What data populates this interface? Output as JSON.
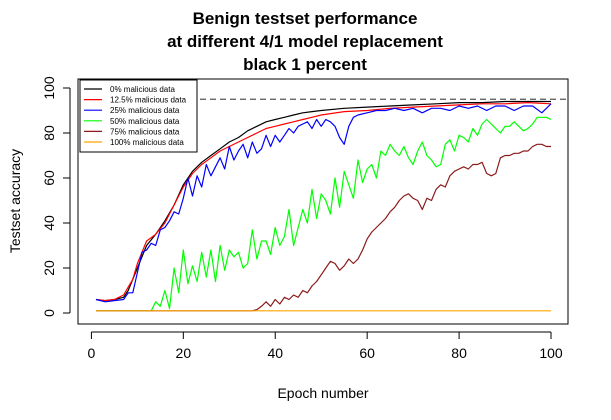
{
  "chart_data": {
    "type": "line",
    "title": [
      "Benign testset performance",
      "at different 4/1 model replacement",
      "black 1 percent"
    ],
    "xlabel": "Epoch number",
    "ylabel": "Testset accuracy",
    "xlim": [
      1,
      100
    ],
    "ylim": [
      0,
      100
    ],
    "xticks": [
      0,
      20,
      40,
      60,
      80,
      100
    ],
    "yticks": [
      0,
      20,
      40,
      60,
      80,
      100
    ],
    "reference_line": {
      "y": 95,
      "style": "dashed",
      "color": "#555555"
    },
    "legend_position": "top-left",
    "series": [
      {
        "name": "0% malicious data",
        "color": "#000000",
        "points": [
          [
            1,
            6
          ],
          [
            3,
            5.5
          ],
          [
            5,
            6
          ],
          [
            7,
            7
          ],
          [
            8,
            10
          ],
          [
            10,
            20
          ],
          [
            12,
            30
          ],
          [
            14,
            35
          ],
          [
            16,
            41
          ],
          [
            18,
            48
          ],
          [
            20,
            57
          ],
          [
            22,
            63
          ],
          [
            24,
            67
          ],
          [
            26,
            70
          ],
          [
            28,
            73
          ],
          [
            30,
            76
          ],
          [
            32,
            78
          ],
          [
            34,
            81
          ],
          [
            36,
            83
          ],
          [
            38,
            85
          ],
          [
            40,
            86
          ],
          [
            42,
            87
          ],
          [
            44,
            88
          ],
          [
            46,
            89
          ],
          [
            48,
            89.5
          ],
          [
            50,
            90
          ],
          [
            55,
            91
          ],
          [
            60,
            91.5
          ],
          [
            65,
            92
          ],
          [
            70,
            92.5
          ],
          [
            75,
            93
          ],
          [
            80,
            93.5
          ],
          [
            85,
            93.5
          ],
          [
            90,
            94
          ],
          [
            95,
            94
          ],
          [
            100,
            94
          ]
        ]
      },
      {
        "name": "12.5% malicious data",
        "color": "#ff0000",
        "points": [
          [
            1,
            6
          ],
          [
            3,
            5.5
          ],
          [
            5,
            6
          ],
          [
            7,
            8
          ],
          [
            9,
            15
          ],
          [
            10,
            22
          ],
          [
            12,
            32
          ],
          [
            14,
            35
          ],
          [
            16,
            40
          ],
          [
            18,
            48
          ],
          [
            20,
            56
          ],
          [
            22,
            62
          ],
          [
            24,
            66
          ],
          [
            26,
            69
          ],
          [
            28,
            72
          ],
          [
            30,
            74
          ],
          [
            32,
            76
          ],
          [
            34,
            78
          ],
          [
            36,
            80
          ],
          [
            38,
            82
          ],
          [
            40,
            83
          ],
          [
            42,
            84
          ],
          [
            44,
            85
          ],
          [
            46,
            86
          ],
          [
            48,
            87
          ],
          [
            50,
            88
          ],
          [
            55,
            89.5
          ],
          [
            60,
            90
          ],
          [
            65,
            91
          ],
          [
            70,
            91.5
          ],
          [
            75,
            92
          ],
          [
            80,
            92.5
          ],
          [
            85,
            93
          ],
          [
            90,
            93
          ],
          [
            95,
            93.5
          ],
          [
            100,
            93
          ]
        ]
      },
      {
        "name": "25% malicious data",
        "color": "#0000ff",
        "points": [
          [
            1,
            6
          ],
          [
            3,
            5
          ],
          [
            5,
            5.5
          ],
          [
            7,
            6
          ],
          [
            8,
            9
          ],
          [
            9,
            9
          ],
          [
            10,
            18
          ],
          [
            11,
            27
          ],
          [
            12,
            28
          ],
          [
            13,
            31
          ],
          [
            14,
            30
          ],
          [
            15,
            37
          ],
          [
            16,
            38
          ],
          [
            17,
            41
          ],
          [
            18,
            45
          ],
          [
            19,
            44
          ],
          [
            20,
            51
          ],
          [
            21,
            60
          ],
          [
            22,
            52
          ],
          [
            23,
            61
          ],
          [
            24,
            56
          ],
          [
            25,
            66
          ],
          [
            26,
            61
          ],
          [
            27,
            65
          ],
          [
            28,
            69
          ],
          [
            29,
            64
          ],
          [
            30,
            74
          ],
          [
            31,
            68
          ],
          [
            32,
            72
          ],
          [
            33,
            75
          ],
          [
            34,
            69
          ],
          [
            35,
            76
          ],
          [
            36,
            71
          ],
          [
            37,
            73
          ],
          [
            38,
            79
          ],
          [
            39,
            74
          ],
          [
            40,
            79
          ],
          [
            41,
            76
          ],
          [
            42,
            79
          ],
          [
            43,
            82
          ],
          [
            44,
            80
          ],
          [
            45,
            83
          ],
          [
            46,
            84
          ],
          [
            47,
            85
          ],
          [
            48,
            82
          ],
          [
            49,
            86
          ],
          [
            50,
            83
          ],
          [
            51,
            86
          ],
          [
            52,
            85
          ],
          [
            53,
            83
          ],
          [
            54,
            78
          ],
          [
            55,
            75
          ],
          [
            56,
            83
          ],
          [
            57,
            87
          ],
          [
            58,
            88
          ],
          [
            60,
            89
          ],
          [
            62,
            90
          ],
          [
            64,
            90
          ],
          [
            66,
            91
          ],
          [
            68,
            90
          ],
          [
            70,
            91
          ],
          [
            72,
            89
          ],
          [
            74,
            91
          ],
          [
            76,
            91
          ],
          [
            78,
            90
          ],
          [
            80,
            92
          ],
          [
            82,
            91
          ],
          [
            84,
            92
          ],
          [
            86,
            90
          ],
          [
            88,
            92
          ],
          [
            90,
            92
          ],
          [
            92,
            90
          ],
          [
            94,
            92
          ],
          [
            96,
            92
          ],
          [
            98,
            89
          ],
          [
            100,
            93
          ]
        ]
      },
      {
        "name": "50% malicious data",
        "color": "#00ff00",
        "points": [
          [
            1,
            1
          ],
          [
            12,
            1
          ],
          [
            13,
            1
          ],
          [
            14,
            5
          ],
          [
            15,
            3
          ],
          [
            16,
            10
          ],
          [
            17,
            2
          ],
          [
            18,
            20
          ],
          [
            19,
            9
          ],
          [
            20,
            28
          ],
          [
            21,
            13
          ],
          [
            22,
            21
          ],
          [
            23,
            14
          ],
          [
            24,
            27
          ],
          [
            25,
            16
          ],
          [
            26,
            28
          ],
          [
            27,
            14
          ],
          [
            28,
            30
          ],
          [
            29,
            19
          ],
          [
            30,
            28
          ],
          [
            31,
            25
          ],
          [
            32,
            27
          ],
          [
            33,
            20
          ],
          [
            34,
            22
          ],
          [
            35,
            37
          ],
          [
            36,
            24
          ],
          [
            37,
            32
          ],
          [
            38,
            32
          ],
          [
            39,
            26
          ],
          [
            40,
            38
          ],
          [
            41,
            30
          ],
          [
            42,
            34
          ],
          [
            43,
            46
          ],
          [
            44,
            30
          ],
          [
            45,
            38
          ],
          [
            46,
            46
          ],
          [
            47,
            40
          ],
          [
            48,
            55
          ],
          [
            49,
            42
          ],
          [
            50,
            53
          ],
          [
            51,
            50
          ],
          [
            52,
            44
          ],
          [
            53,
            60
          ],
          [
            54,
            47
          ],
          [
            55,
            63
          ],
          [
            56,
            57
          ],
          [
            57,
            51
          ],
          [
            58,
            68
          ],
          [
            59,
            58
          ],
          [
            60,
            64
          ],
          [
            61,
            66
          ],
          [
            62,
            60
          ],
          [
            63,
            72
          ],
          [
            64,
            70
          ],
          [
            65,
            75
          ],
          [
            66,
            72
          ],
          [
            67,
            70
          ],
          [
            68,
            74
          ],
          [
            69,
            69
          ],
          [
            70,
            66
          ],
          [
            71,
            72
          ],
          [
            72,
            76
          ],
          [
            73,
            70
          ],
          [
            74,
            68
          ],
          [
            75,
            65
          ],
          [
            76,
            66
          ],
          [
            77,
            75
          ],
          [
            78,
            77
          ],
          [
            79,
            72
          ],
          [
            80,
            79
          ],
          [
            81,
            78
          ],
          [
            82,
            76
          ],
          [
            83,
            82
          ],
          [
            84,
            79
          ],
          [
            85,
            84
          ],
          [
            86,
            86
          ],
          [
            87,
            84
          ],
          [
            88,
            82
          ],
          [
            89,
            80
          ],
          [
            90,
            83
          ],
          [
            91,
            83
          ],
          [
            92,
            85
          ],
          [
            93,
            83
          ],
          [
            94,
            81
          ],
          [
            95,
            82
          ],
          [
            96,
            84
          ],
          [
            97,
            87
          ],
          [
            98,
            87
          ],
          [
            99,
            87
          ],
          [
            100,
            86
          ]
        ]
      },
      {
        "name": "75% malicious data",
        "color": "#8b1a1a",
        "points": [
          [
            1,
            1
          ],
          [
            35,
            1
          ],
          [
            36,
            1.5
          ],
          [
            37,
            3
          ],
          [
            38,
            5
          ],
          [
            39,
            3
          ],
          [
            40,
            6
          ],
          [
            41,
            4
          ],
          [
            42,
            7
          ],
          [
            43,
            6
          ],
          [
            44,
            8
          ],
          [
            45,
            7
          ],
          [
            46,
            10
          ],
          [
            47,
            9
          ],
          [
            48,
            12
          ],
          [
            49,
            14
          ],
          [
            50,
            17
          ],
          [
            51,
            20
          ],
          [
            52,
            23
          ],
          [
            53,
            22
          ],
          [
            54,
            19
          ],
          [
            55,
            21
          ],
          [
            56,
            24
          ],
          [
            57,
            22
          ],
          [
            58,
            24
          ],
          [
            59,
            28
          ],
          [
            60,
            33
          ],
          [
            61,
            36
          ],
          [
            62,
            38
          ],
          [
            63,
            40
          ],
          [
            64,
            42
          ],
          [
            65,
            45
          ],
          [
            66,
            47
          ],
          [
            67,
            50
          ],
          [
            68,
            52
          ],
          [
            69,
            53
          ],
          [
            70,
            51
          ],
          [
            71,
            50
          ],
          [
            72,
            46
          ],
          [
            73,
            51
          ],
          [
            74,
            50
          ],
          [
            75,
            55
          ],
          [
            76,
            57
          ],
          [
            77,
            56
          ],
          [
            78,
            61
          ],
          [
            79,
            63
          ],
          [
            80,
            64
          ],
          [
            81,
            65
          ],
          [
            82,
            64
          ],
          [
            83,
            66
          ],
          [
            84,
            66
          ],
          [
            85,
            67
          ],
          [
            86,
            62
          ],
          [
            87,
            61
          ],
          [
            88,
            62
          ],
          [
            89,
            69
          ],
          [
            90,
            70
          ],
          [
            91,
            70
          ],
          [
            92,
            71
          ],
          [
            93,
            71
          ],
          [
            94,
            72
          ],
          [
            95,
            72
          ],
          [
            96,
            74
          ],
          [
            97,
            75
          ],
          [
            98,
            75
          ],
          [
            99,
            74
          ],
          [
            100,
            74
          ]
        ]
      },
      {
        "name": "100% malicious data",
        "color": "#ffa500",
        "points": [
          [
            1,
            1
          ],
          [
            20,
            1
          ],
          [
            40,
            1
          ],
          [
            60,
            1
          ],
          [
            80,
            1
          ],
          [
            95,
            1
          ],
          [
            100,
            1
          ]
        ]
      }
    ]
  }
}
